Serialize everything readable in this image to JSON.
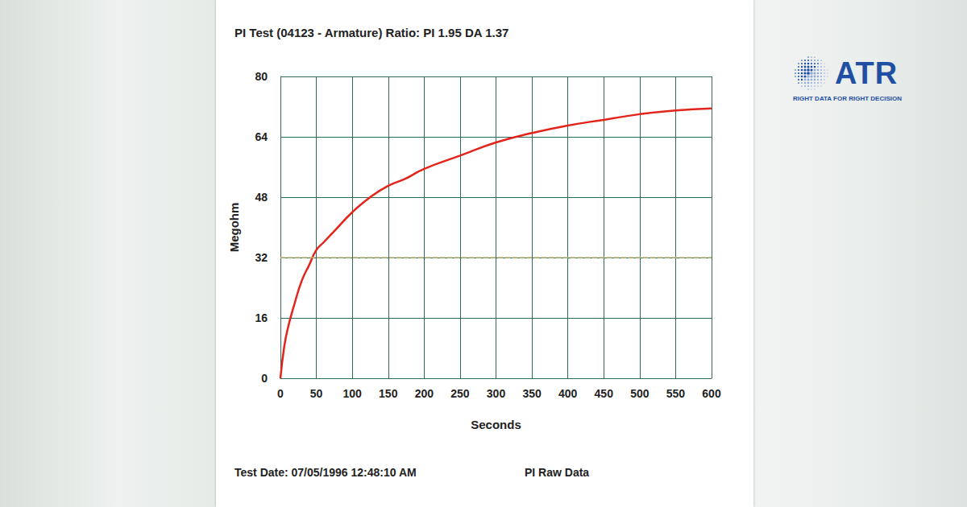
{
  "chart_data": {
    "type": "line",
    "title": "PI Test (04123 - Armature) Ratio: PI 1.95 DA 1.37",
    "x_label": "Seconds",
    "y_label": "Megohm",
    "annotations": [
      "Test Date: 07/05/1996 12:48:10 AM",
      "PI Raw Data"
    ],
    "x": [
      0,
      5,
      10,
      20,
      30,
      40,
      50,
      60,
      75,
      100,
      125,
      150,
      175,
      200,
      250,
      300,
      350,
      400,
      450,
      500,
      550,
      600
    ],
    "values": [
      0,
      8,
      13,
      20,
      26,
      30,
      34,
      36,
      39,
      44,
      48,
      51,
      53,
      55.5,
      59,
      62.5,
      65,
      67,
      68.5,
      70,
      71,
      71.5
    ],
    "color": "#e3241b",
    "reference_value": 32,
    "xlim": [
      0,
      600
    ],
    "xticks": [
      0,
      50,
      100,
      150,
      200,
      250,
      300,
      350,
      400,
      450,
      500,
      550,
      600
    ],
    "ylim": [
      0,
      80
    ],
    "yticks": [
      0,
      16,
      32,
      48,
      64,
      80
    ],
    "grid": true
  },
  "logo": {
    "name": "ATR",
    "tagline": "RIGHT DATA FOR RIGHT DECISION"
  }
}
